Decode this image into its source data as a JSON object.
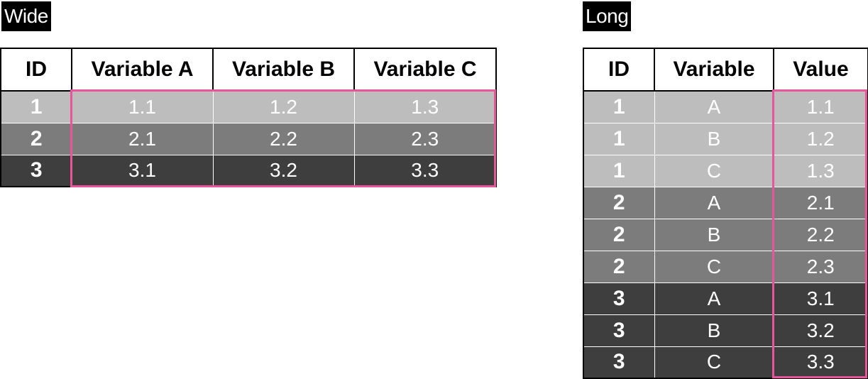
{
  "wide": {
    "label": "Wide",
    "headers": [
      "ID",
      "Variable A",
      "Variable B",
      "Variable C"
    ],
    "rows": [
      [
        "1",
        "1.1",
        "1.2",
        "1.3"
      ],
      [
        "2",
        "2.1",
        "2.2",
        "2.3"
      ],
      [
        "3",
        "3.1",
        "3.2",
        "3.3"
      ]
    ]
  },
  "long": {
    "label": "Long",
    "headers": [
      "ID",
      "Variable",
      "Value"
    ],
    "rows": [
      [
        "1",
        "A",
        "1.1"
      ],
      [
        "1",
        "B",
        "1.2"
      ],
      [
        "1",
        "C",
        "1.3"
      ],
      [
        "2",
        "A",
        "2.1"
      ],
      [
        "2",
        "B",
        "2.2"
      ],
      [
        "2",
        "C",
        "2.3"
      ],
      [
        "3",
        "A",
        "3.1"
      ],
      [
        "3",
        "B",
        "3.2"
      ],
      [
        "3",
        "C",
        "3.3"
      ]
    ]
  },
  "colors": {
    "group1": "#bdbdbd",
    "group2": "#7c7c7c",
    "group3": "#3e3e3e",
    "highlight": "#e8559a"
  }
}
